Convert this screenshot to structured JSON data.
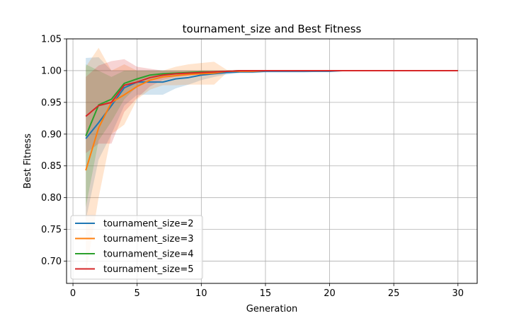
{
  "chart_data": {
    "type": "line",
    "title": "tournament_size and Best Fitness",
    "xlabel": "Generation",
    "ylabel": "Best Fitness",
    "xlim": [
      -0.5,
      31.5
    ],
    "ylim": [
      0.665,
      1.05
    ],
    "xticks": [
      0,
      5,
      10,
      15,
      20,
      25,
      30
    ],
    "yticks": [
      0.7,
      0.75,
      0.8,
      0.85,
      0.9,
      0.95,
      1.0,
      1.05
    ],
    "xtick_labels": [
      "0",
      "5",
      "10",
      "15",
      "20",
      "25",
      "30"
    ],
    "ytick_labels": [
      "0.70",
      "0.75",
      "0.80",
      "0.85",
      "0.90",
      "0.95",
      "1.00",
      "1.05"
    ],
    "grid": true,
    "legend_position": "bottom-left",
    "x": [
      1,
      2,
      3,
      4,
      5,
      6,
      7,
      8,
      9,
      10,
      11,
      12,
      13,
      14,
      15,
      16,
      17,
      18,
      19,
      20,
      21,
      22,
      23,
      24,
      25,
      26,
      27,
      28,
      29,
      30
    ],
    "series": [
      {
        "name": "tournament_size=2",
        "color": "#1f77b4",
        "values": [
          0.893,
          0.918,
          0.945,
          0.973,
          0.982,
          0.982,
          0.982,
          0.987,
          0.989,
          0.993,
          0.995,
          0.997,
          0.998,
          0.998,
          0.999,
          0.999,
          0.999,
          0.999,
          0.999,
          0.999,
          1.0,
          1.0,
          1.0,
          1.0,
          1.0,
          1.0,
          1.0,
          1.0,
          1.0,
          1.0
        ],
        "band_lower": [
          0.765,
          0.86,
          0.9,
          0.945,
          0.962,
          0.962,
          0.962,
          0.972,
          0.978,
          0.985,
          0.99,
          0.994,
          0.996,
          0.996,
          0.997,
          0.997,
          0.997,
          0.997,
          0.998,
          0.998,
          1.0,
          1.0,
          1.0,
          1.0,
          1.0,
          1.0,
          1.0,
          1.0,
          1.0,
          1.0
        ],
        "band_upper": [
          1.02,
          1.021,
          1.0,
          1.0,
          1.0,
          1.0,
          1.0,
          1.0,
          1.0,
          1.0,
          1.0,
          1.0,
          1.0,
          1.0,
          1.0,
          1.0,
          1.0,
          1.0,
          1.0,
          1.0,
          1.0,
          1.0,
          1.0,
          1.0,
          1.0,
          1.0,
          1.0,
          1.0,
          1.0,
          1.0
        ]
      },
      {
        "name": "tournament_size=3",
        "color": "#ff7f0e",
        "values": [
          0.843,
          0.91,
          0.95,
          0.962,
          0.975,
          0.985,
          0.99,
          0.992,
          0.994,
          0.995,
          0.996,
          0.999,
          0.999,
          0.999,
          1.0,
          1.0,
          1.0,
          1.0,
          1.0,
          1.0,
          1.0,
          1.0,
          1.0,
          1.0,
          1.0,
          1.0,
          1.0,
          1.0,
          1.0,
          1.0
        ],
        "band_lower": [
          0.68,
          0.8,
          0.9,
          0.915,
          0.955,
          0.97,
          0.977,
          0.977,
          0.978,
          0.978,
          0.978,
          0.997,
          0.998,
          0.999,
          1.0,
          1.0,
          1.0,
          1.0,
          1.0,
          1.0,
          1.0,
          1.0,
          1.0,
          1.0,
          1.0,
          1.0,
          1.0,
          1.0,
          1.0,
          1.0
        ],
        "band_upper": [
          1.006,
          1.036,
          1.0,
          1.01,
          1.0,
          1.0,
          1.0,
          1.006,
          1.01,
          1.012,
          1.014,
          1.001,
          1.0,
          1.0,
          1.0,
          1.0,
          1.0,
          1.0,
          1.0,
          1.0,
          1.0,
          1.0,
          1.0,
          1.0,
          1.0,
          1.0,
          1.0,
          1.0,
          1.0,
          1.0
        ]
      },
      {
        "name": "tournament_size=4",
        "color": "#2ca02c",
        "values": [
          0.897,
          0.946,
          0.955,
          0.98,
          0.987,
          0.993,
          0.995,
          0.996,
          0.997,
          0.998,
          0.998,
          0.999,
          1.0,
          1.0,
          1.0,
          1.0,
          1.0,
          1.0,
          1.0,
          1.0,
          1.0,
          1.0,
          1.0,
          1.0,
          1.0,
          1.0,
          1.0,
          1.0,
          1.0,
          1.0
        ],
        "band_lower": [
          0.785,
          0.89,
          0.92,
          0.955,
          0.975,
          0.985,
          0.99,
          0.992,
          0.994,
          0.996,
          0.997,
          0.998,
          1.0,
          1.0,
          1.0,
          1.0,
          1.0,
          1.0,
          1.0,
          1.0,
          1.0,
          1.0,
          1.0,
          1.0,
          1.0,
          1.0,
          1.0,
          1.0,
          1.0,
          1.0
        ],
        "band_upper": [
          1.01,
          1.0,
          0.99,
          1.0,
          1.0,
          1.0,
          1.0,
          1.0,
          1.0,
          1.0,
          1.0,
          1.0,
          1.0,
          1.0,
          1.0,
          1.0,
          1.0,
          1.0,
          1.0,
          1.0,
          1.0,
          1.0,
          1.0,
          1.0,
          1.0,
          1.0,
          1.0,
          1.0,
          1.0,
          1.0
        ]
      },
      {
        "name": "tournament_size=5",
        "color": "#d62728",
        "values": [
          0.928,
          0.945,
          0.95,
          0.977,
          0.982,
          0.989,
          0.993,
          0.995,
          0.996,
          0.997,
          0.998,
          0.999,
          1.0,
          1.0,
          1.0,
          1.0,
          1.0,
          1.0,
          1.0,
          1.0,
          1.0,
          1.0,
          1.0,
          1.0,
          1.0,
          1.0,
          1.0,
          1.0,
          1.0,
          1.0
        ],
        "band_lower": [
          0.87,
          0.885,
          0.885,
          0.935,
          0.957,
          0.975,
          0.985,
          0.99,
          0.992,
          0.994,
          0.996,
          0.998,
          1.0,
          1.0,
          1.0,
          1.0,
          1.0,
          1.0,
          1.0,
          1.0,
          1.0,
          1.0,
          1.0,
          1.0,
          1.0,
          1.0,
          1.0,
          1.0,
          1.0,
          1.0
        ],
        "band_upper": [
          0.99,
          1.008,
          1.015,
          1.018,
          1.006,
          1.003,
          1.0,
          1.0,
          1.0,
          1.0,
          1.0,
          1.0,
          1.0,
          1.0,
          1.0,
          1.0,
          1.0,
          1.0,
          1.0,
          1.0,
          1.0,
          1.0,
          1.0,
          1.0,
          1.0,
          1.0,
          1.0,
          1.0,
          1.0,
          1.0
        ]
      }
    ]
  }
}
